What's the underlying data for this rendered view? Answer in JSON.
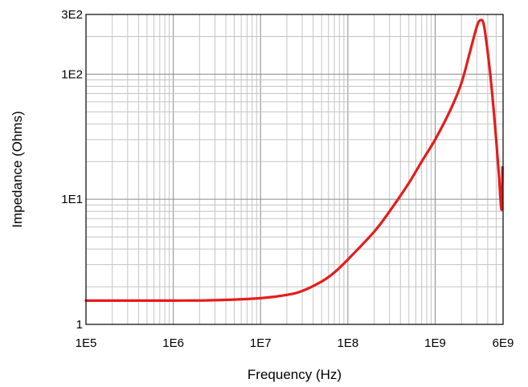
{
  "chart_data": {
    "type": "line",
    "title": "",
    "xlabel": "Frequency (Hz)",
    "ylabel": "Impedance (Ohms)",
    "x_scale": "log",
    "y_scale": "log",
    "xlim": [
      100000,
      6000000000
    ],
    "ylim": [
      1,
      300
    ],
    "grid": true,
    "x_ticks": [
      {
        "value": 100000,
        "label": "1E5"
      },
      {
        "value": 1000000,
        "label": "1E6"
      },
      {
        "value": 10000000,
        "label": "1E7"
      },
      {
        "value": 100000000,
        "label": "1E8"
      },
      {
        "value": 1000000000,
        "label": "1E9"
      },
      {
        "value": 6000000000,
        "label": "6E9"
      }
    ],
    "y_ticks": [
      {
        "value": 1,
        "label": "1"
      },
      {
        "value": 10,
        "label": "1E1"
      },
      {
        "value": 100,
        "label": "1E2"
      },
      {
        "value": 300,
        "label": "3E2"
      }
    ],
    "series": [
      {
        "color": "#e51c1c",
        "x": [
          100000,
          1000000,
          3000000,
          10000000,
          20000000,
          30000000,
          50000000,
          70000000,
          100000000,
          200000000,
          300000000,
          500000000,
          700000000,
          1000000000,
          1500000000,
          2000000000,
          2500000000,
          3000000000,
          3300000000,
          3600000000,
          4000000000,
          4500000000,
          5000000000,
          5400000000,
          5600000000,
          5800000000,
          5900000000
        ],
        "y": [
          1.55,
          1.55,
          1.56,
          1.62,
          1.72,
          1.85,
          2.2,
          2.6,
          3.3,
          5.5,
          8.0,
          13.5,
          20.0,
          30.0,
          52.0,
          85.0,
          150.0,
          240.0,
          270.0,
          250.0,
          150.0,
          70.0,
          30.0,
          15.0,
          10.0,
          8.5,
          18.0
        ]
      }
    ]
  }
}
